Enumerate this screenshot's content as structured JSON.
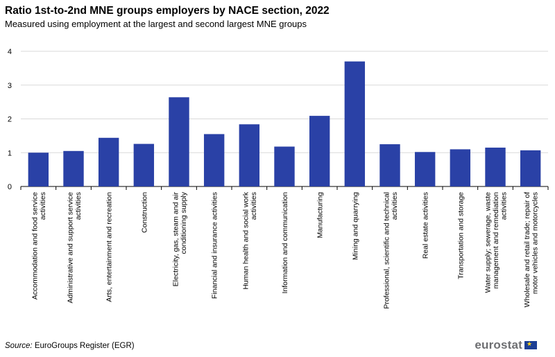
{
  "chart_data": {
    "type": "bar",
    "title": "Ratio 1st-to-2nd MNE groups employers by NACE section, 2022",
    "subtitle": "Measured using employment  at the largest and second largest MNE groups",
    "categories": [
      "Accommodation and food service activities",
      "Administrative and support service activities",
      "Arts, entertainment and recreation",
      "Construction",
      "Electricity, gas, steam and air conditioning supply",
      "Financial and insurance activities",
      "Human health and social work activities",
      "Information and communication",
      "Manufacturing",
      "Mining and quarrying",
      "Professional, scientific and technical activities",
      "Real estate activities",
      "Transportation and storage",
      "Water supply; sewerage, waste management and remediation activities",
      "Wholesale and retail trade; repair of motor vehicles and motorcycles"
    ],
    "category_lines": [
      [
        "Accommodation and food service",
        "activities"
      ],
      [
        "Administrative and support service",
        "activities"
      ],
      [
        "Arts, entertainment and recreation"
      ],
      [
        "Construction"
      ],
      [
        "Electricity, gas, steam and air",
        "conditioning supply"
      ],
      [
        "Financial and insurance activities"
      ],
      [
        "Human health and social work",
        "activities"
      ],
      [
        "Information and communication"
      ],
      [
        "Manufacturing"
      ],
      [
        "Mining and quarrying"
      ],
      [
        "Professional, scientific and technical",
        "activities"
      ],
      [
        "Real estate activities"
      ],
      [
        "Transportation and storage"
      ],
      [
        "Water supply; sewerage, waste",
        "management and remediation",
        "activities"
      ],
      [
        "Wholesale and retail trade; repair of",
        "motor vehicles and motorcycles"
      ]
    ],
    "values": [
      1.0,
      1.05,
      1.44,
      1.26,
      2.64,
      1.55,
      1.84,
      1.18,
      2.09,
      3.7,
      1.25,
      1.02,
      1.1,
      1.15,
      1.07
    ],
    "ylim": [
      0,
      4
    ],
    "yticks": [
      "0",
      "1",
      "2",
      "3",
      "4"
    ],
    "grid": true,
    "bar_color": "#2a41a6"
  },
  "source": {
    "label": "Source:",
    "text": " EuroGroups Register (EGR)"
  },
  "logo": {
    "text": "eurostat",
    "icon": "eu-flag-icon"
  }
}
